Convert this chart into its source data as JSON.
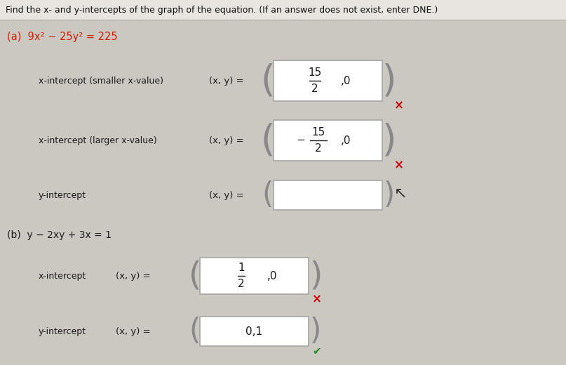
{
  "bg_color": "#d8d5d0",
  "title_text": "Find the x- and y-intercepts of the graph of the equation. (If an answer does not exist, enter DNE.)",
  "part_a_label": "(a)  9x² − 25y² = 225",
  "part_b_label": "(b)  y − 2xy + 3x = 1",
  "title_bar_color": "#c8c4be",
  "bg_color_light": "#ccc9c4"
}
